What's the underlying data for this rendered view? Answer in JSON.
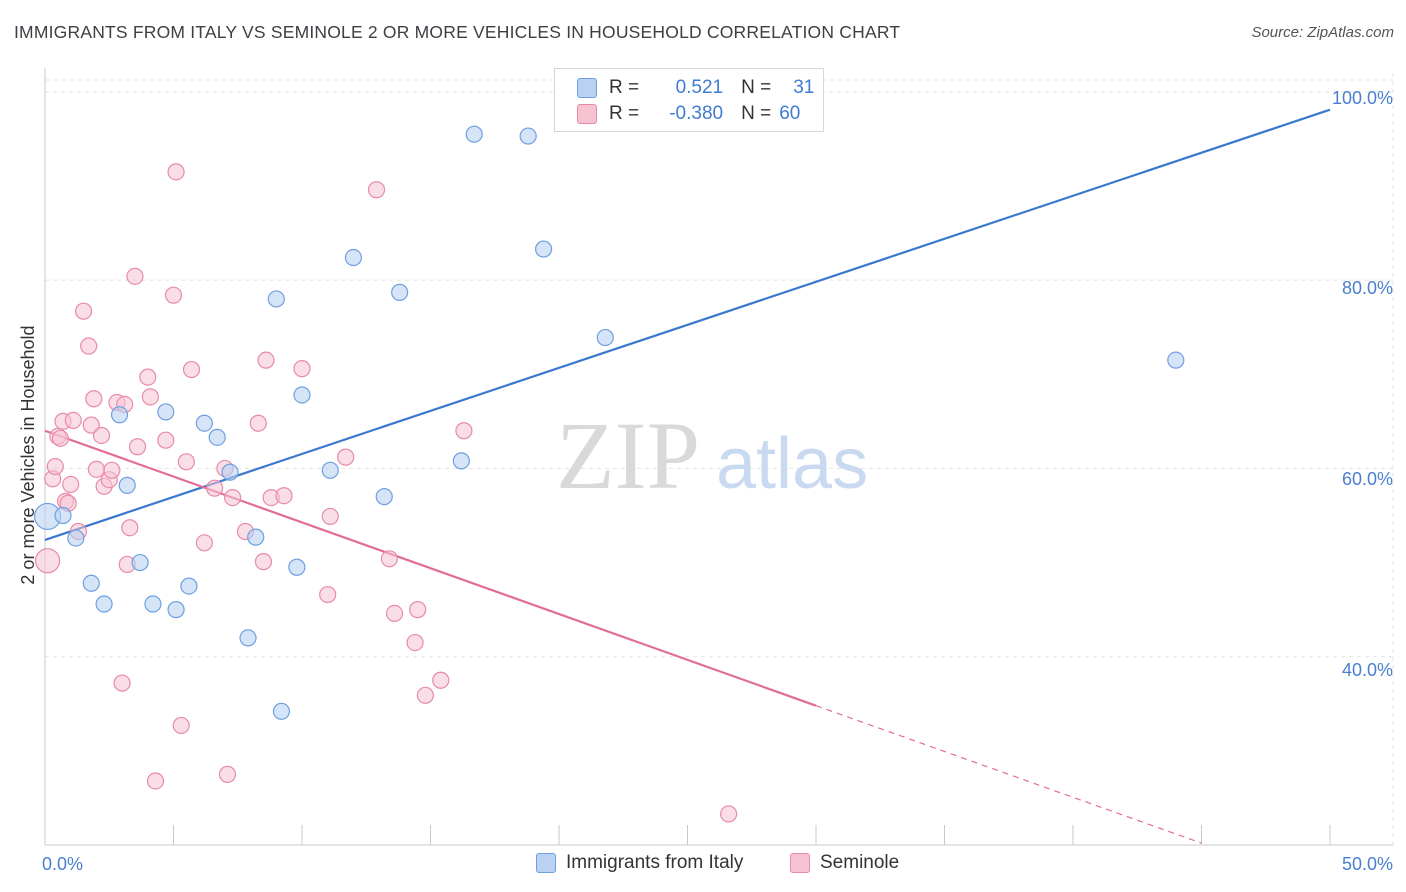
{
  "title": "IMMIGRANTS FROM ITALY VS SEMINOLE 2 OR MORE VEHICLES IN HOUSEHOLD CORRELATION CHART",
  "source": "Source: ZipAtlas.com",
  "watermark": {
    "zip": "ZIP",
    "atlas": "atlas"
  },
  "legend": {
    "rows": [
      {
        "r_label": "R =",
        "r_value": "0.521",
        "n_label": "N =",
        "n_value": "31"
      },
      {
        "r_label": "R =",
        "r_value": "-0.380",
        "n_label": "N =",
        "n_value": "60"
      }
    ]
  },
  "bottom_legend": {
    "series1": "Immigrants from Italy",
    "series2": "Seminole"
  },
  "colors": {
    "blue_fill": "#b9d2f1",
    "blue_stroke": "#6f9fe0",
    "blue_line": "#3a78cf",
    "pink_fill": "#f6c3d3",
    "pink_stroke": "#e88aa8",
    "pink_line": "#e16d97",
    "axis_text": "#4a7fd0",
    "grid": "#e3e3e3"
  },
  "chart_data": {
    "type": "scatter",
    "title": "IMMIGRANTS FROM ITALY VS SEMINOLE 2 OR MORE VEHICLES IN HOUSEHOLD CORRELATION CHART",
    "xlabel": "",
    "ylabel": "2 or more Vehicles in Household",
    "x_tick_labels": [
      "0.0%",
      "50.0%"
    ],
    "y_tick_labels": [
      "40.0%",
      "60.0%",
      "80.0%",
      "100.0%"
    ],
    "xlim": [
      0,
      50
    ],
    "ylim": [
      20,
      102
    ],
    "series": [
      {
        "name": "Immigrants from Italy",
        "r": 0.521,
        "n": 31,
        "trend": {
          "x": [
            0,
            50
          ],
          "y": [
            52.4,
            98.1
          ]
        },
        "points": [
          [
            0.1,
            54.9
          ],
          [
            0.7,
            55.0
          ],
          [
            1.2,
            52.6
          ],
          [
            1.8,
            47.8
          ],
          [
            2.3,
            45.6
          ],
          [
            2.9,
            65.7
          ],
          [
            3.2,
            58.2
          ],
          [
            3.7,
            50.0
          ],
          [
            4.2,
            45.6
          ],
          [
            4.7,
            66.0
          ],
          [
            5.1,
            45.0
          ],
          [
            5.6,
            47.5
          ],
          [
            6.2,
            64.8
          ],
          [
            6.7,
            63.3
          ],
          [
            7.2,
            59.6
          ],
          [
            7.9,
            42.0
          ],
          [
            8.2,
            52.7
          ],
          [
            9.0,
            78.0
          ],
          [
            9.2,
            34.2
          ],
          [
            9.8,
            49.5
          ],
          [
            10.0,
            67.8
          ],
          [
            11.1,
            59.8
          ],
          [
            12.0,
            82.4
          ],
          [
            13.2,
            57.0
          ],
          [
            13.8,
            78.7
          ],
          [
            16.2,
            60.8
          ],
          [
            16.7,
            95.5
          ],
          [
            18.8,
            95.3
          ],
          [
            19.4,
            83.3
          ],
          [
            21.8,
            73.9
          ],
          [
            44.0,
            71.5
          ]
        ]
      },
      {
        "name": "Seminole",
        "r": -0.38,
        "n": 60,
        "trend": {
          "x": [
            0,
            30
          ],
          "y": [
            64.0,
            34.8
          ]
        },
        "trend_dashed": {
          "x": [
            30,
            45
          ],
          "y": [
            34.8,
            20.2
          ]
        },
        "points": [
          [
            0.1,
            50.2
          ],
          [
            0.3,
            58.9
          ],
          [
            0.4,
            60.2
          ],
          [
            0.5,
            63.4
          ],
          [
            0.6,
            63.2
          ],
          [
            0.7,
            65.0
          ],
          [
            0.8,
            56.5
          ],
          [
            0.9,
            56.3
          ],
          [
            1.0,
            58.3
          ],
          [
            1.1,
            65.1
          ],
          [
            1.3,
            53.3
          ],
          [
            1.5,
            76.7
          ],
          [
            1.7,
            73.0
          ],
          [
            1.8,
            64.6
          ],
          [
            1.9,
            67.4
          ],
          [
            2.0,
            59.9
          ],
          [
            2.2,
            63.5
          ],
          [
            2.3,
            58.1
          ],
          [
            2.5,
            58.8
          ],
          [
            2.6,
            59.8
          ],
          [
            2.8,
            67.0
          ],
          [
            3.0,
            37.2
          ],
          [
            3.1,
            66.8
          ],
          [
            3.2,
            49.8
          ],
          [
            3.3,
            53.7
          ],
          [
            3.5,
            80.4
          ],
          [
            3.6,
            62.3
          ],
          [
            4.0,
            69.7
          ],
          [
            4.1,
            67.6
          ],
          [
            4.3,
            26.8
          ],
          [
            4.7,
            63.0
          ],
          [
            5.0,
            78.4
          ],
          [
            5.1,
            91.5
          ],
          [
            5.3,
            32.7
          ],
          [
            5.5,
            60.7
          ],
          [
            5.7,
            70.5
          ],
          [
            6.2,
            52.1
          ],
          [
            6.6,
            57.9
          ],
          [
            7.0,
            60.0
          ],
          [
            7.1,
            27.5
          ],
          [
            7.3,
            56.9
          ],
          [
            7.8,
            53.3
          ],
          [
            8.3,
            64.8
          ],
          [
            8.5,
            50.1
          ],
          [
            8.6,
            71.5
          ],
          [
            8.8,
            56.9
          ],
          [
            9.3,
            57.1
          ],
          [
            10.0,
            70.6
          ],
          [
            11.0,
            46.6
          ],
          [
            11.1,
            54.9
          ],
          [
            11.7,
            61.2
          ],
          [
            12.9,
            89.6
          ],
          [
            13.4,
            50.4
          ],
          [
            13.6,
            44.6
          ],
          [
            14.4,
            41.5
          ],
          [
            14.5,
            45.0
          ],
          [
            14.8,
            35.9
          ],
          [
            15.4,
            37.5
          ],
          [
            16.3,
            64.0
          ],
          [
            26.6,
            23.3
          ]
        ]
      }
    ],
    "grid": true,
    "legend_position": "top-center"
  }
}
